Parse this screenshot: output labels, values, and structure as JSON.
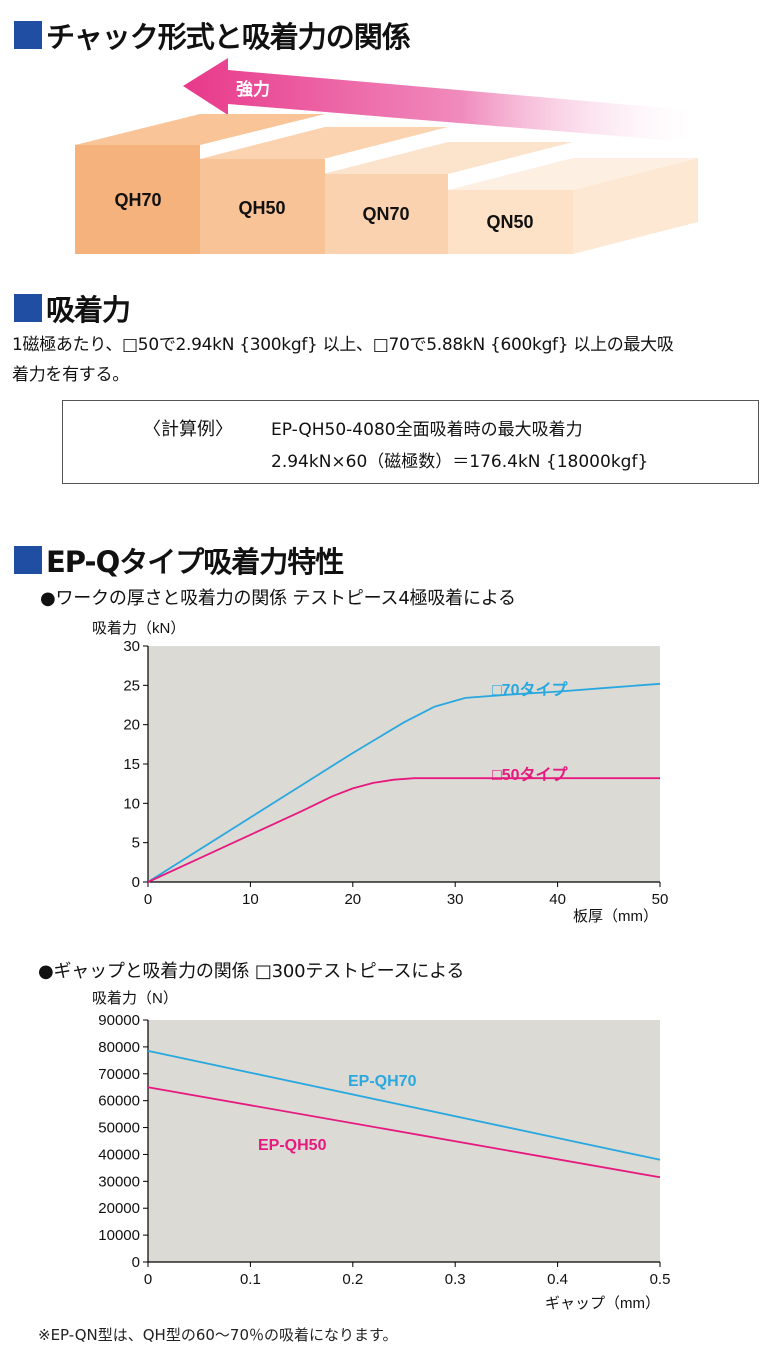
{
  "section1": {
    "title": "チャック形式と吸着力の関係",
    "arrow_label": "強力",
    "blocks": [
      {
        "label": "QH70",
        "color": "#f5b27c"
      },
      {
        "label": "QH50",
        "color": "#f8c396"
      },
      {
        "label": "QN70",
        "color": "#fad2af"
      },
      {
        "label": "QN50",
        "color": "#fde2c8"
      }
    ]
  },
  "section2": {
    "title": "吸着力",
    "description_line1": "1磁極あたり、□50で2.94kN {300kgf} 以上、□70で5.88kN {600kgf} 以上の最大吸",
    "description_line2": "着力を有する。",
    "calc": {
      "label": "〈計算例〉",
      "line1": "EP-QH50-4080全面吸着時の最大吸着力",
      "line2": "2.94kN×60（磁極数）＝176.4kN {18000kgf}"
    }
  },
  "section3": {
    "title": "EP-Qタイプ吸着力特性"
  },
  "chart_data": [
    {
      "type": "line",
      "title": "●ワークの厚さと吸着力の関係 テストピース4極吸着による",
      "ylabel": "吸着力（kN）",
      "xlabel": "板厚（mm）",
      "xlim": [
        0,
        50
      ],
      "ylim": [
        0,
        30
      ],
      "xticks": [
        "0",
        "10",
        "20",
        "30",
        "40",
        "50"
      ],
      "yticks": [
        "0",
        "5",
        "10",
        "15",
        "20",
        "25",
        "30"
      ],
      "grid": false,
      "series": [
        {
          "name": "□70タイプ",
          "color": "#29a8e0",
          "x": [
            0,
            5,
            10,
            15,
            20,
            25,
            28,
            31,
            35,
            40,
            45,
            50
          ],
          "y": [
            0,
            4.1,
            8.2,
            12.3,
            16.4,
            20.3,
            22.3,
            23.4,
            23.8,
            24.2,
            24.7,
            25.2
          ]
        },
        {
          "name": "□50タイプ",
          "color": "#e6197f",
          "x": [
            0,
            5,
            10,
            15,
            18,
            20,
            22,
            24,
            26,
            30,
            40,
            50
          ],
          "y": [
            0,
            3.0,
            6.0,
            9.0,
            10.9,
            11.9,
            12.6,
            13.0,
            13.2,
            13.2,
            13.2,
            13.2
          ]
        }
      ]
    },
    {
      "type": "line",
      "title": "●ギャップと吸着力の関係 □300テストピースによる",
      "ylabel": "吸着力（N）",
      "xlabel": "ギャップ（mm）",
      "xlim": [
        0,
        0.5
      ],
      "ylim": [
        0,
        90000
      ],
      "xticks": [
        "0",
        "0.1",
        "0.2",
        "0.3",
        "0.4",
        "0.5"
      ],
      "yticks": [
        "0",
        "10000",
        "20000",
        "30000",
        "40000",
        "50000",
        "60000",
        "70000",
        "80000",
        "90000"
      ],
      "grid": false,
      "series": [
        {
          "name": "EP-QH70",
          "color": "#29a8e0",
          "x": [
            0,
            0.5
          ],
          "y": [
            78500,
            38000
          ]
        },
        {
          "name": "EP-QH50",
          "color": "#e6197f",
          "x": [
            0,
            0.5
          ],
          "y": [
            65000,
            31500
          ]
        }
      ]
    }
  ],
  "note": "※EP-QN型は、QH型の60～70％の吸着になります。"
}
